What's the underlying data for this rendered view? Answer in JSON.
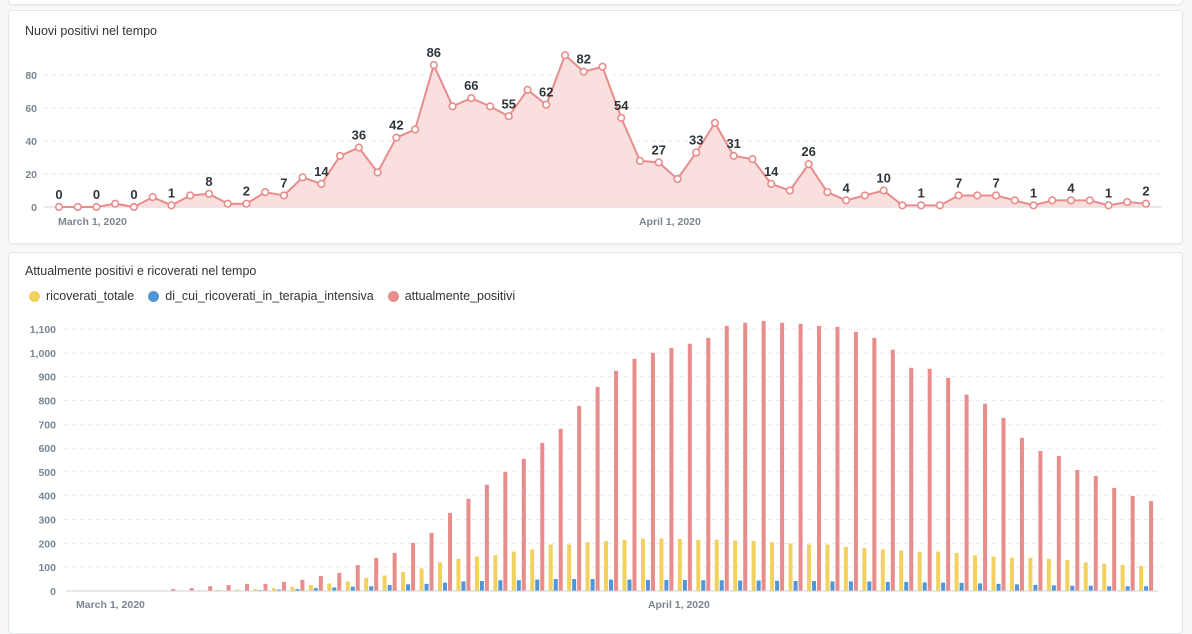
{
  "chart_data": [
    {
      "type": "line",
      "title": "Nuovi positivi nel tempo",
      "xlabel": "",
      "ylabel": "",
      "x_ticks": [
        {
          "index": 0,
          "label": "March 1, 2020"
        },
        {
          "index": 31,
          "label": "April 1, 2020"
        }
      ],
      "y_ticks": [
        0,
        20,
        40,
        60,
        80
      ],
      "ylim": [
        0,
        95
      ],
      "color": "#e88c8c",
      "fill": "#f9d9d9",
      "values": [
        0,
        0,
        0,
        2,
        0,
        6,
        1,
        7,
        8,
        2,
        2,
        9,
        7,
        18,
        14,
        31,
        36,
        21,
        42,
        47,
        86,
        61,
        66,
        61,
        55,
        71,
        62,
        92,
        82,
        85,
        54,
        28,
        27,
        17,
        33,
        51,
        31,
        29,
        14,
        10,
        26,
        9,
        4,
        7,
        10,
        1,
        1,
        1,
        7,
        7,
        7,
        4,
        1,
        4,
        4,
        4,
        1,
        3,
        2
      ],
      "label_every": 2
    },
    {
      "type": "bar",
      "title": "Attualmente positivi e ricoverati nel tempo",
      "xlabel": "",
      "ylabel": "",
      "x_ticks": [
        {
          "index": 0,
          "label": "March 1, 2020"
        },
        {
          "index": 31,
          "label": "April 1, 2020"
        }
      ],
      "y_ticks": [
        0,
        100,
        200,
        300,
        400,
        500,
        600,
        700,
        800,
        900,
        1000,
        1100
      ],
      "y_tick_labels": [
        "0",
        "100",
        "200",
        "300",
        "400",
        "500",
        "600",
        "700",
        "800",
        "900",
        "1,000",
        "1,100"
      ],
      "ylim": [
        0,
        1150
      ],
      "legend_position": "top-left",
      "series": [
        {
          "name": "ricoverati_totale",
          "color": "#f2d15f",
          "values": [
            0,
            0,
            0,
            0,
            0,
            0,
            2,
            3,
            4,
            6,
            8,
            12,
            18,
            25,
            32,
            40,
            55,
            65,
            80,
            95,
            120,
            135,
            145,
            150,
            165,
            175,
            195,
            195,
            205,
            210,
            215,
            220,
            220,
            218,
            215,
            215,
            212,
            210,
            205,
            200,
            195,
            195,
            185,
            180,
            175,
            170,
            165,
            165,
            160,
            150,
            145,
            140,
            140,
            135,
            130,
            120,
            115,
            110,
            105
          ]
        },
        {
          "name": "di_cui_ricoverati_in_terapia_intensiva",
          "color": "#4f96d8",
          "values": [
            0,
            0,
            0,
            0,
            0,
            0,
            0,
            0,
            0,
            2,
            4,
            6,
            8,
            12,
            15,
            18,
            20,
            25,
            28,
            30,
            35,
            40,
            42,
            45,
            45,
            48,
            50,
            50,
            50,
            48,
            48,
            46,
            46,
            46,
            45,
            45,
            44,
            44,
            43,
            42,
            42,
            40,
            40,
            40,
            38,
            38,
            36,
            35,
            34,
            32,
            30,
            28,
            26,
            24,
            22,
            22,
            20,
            20,
            20
          ]
        },
        {
          "name": "attualmente_positivi",
          "color": "#e88c8c",
          "values": [
            0,
            0,
            0,
            0,
            0,
            8,
            12,
            20,
            25,
            30,
            30,
            38,
            47,
            63,
            76,
            109,
            139,
            160,
            202,
            244,
            328,
            387,
            446,
            500,
            555,
            622,
            681,
            777,
            857,
            924,
            975,
            1000,
            1021,
            1038,
            1063,
            1113,
            1126,
            1134,
            1126,
            1122,
            1113,
            1109,
            1088,
            1063,
            1013,
            937,
            933,
            895,
            824,
            786,
            727,
            643,
            588,
            567,
            508,
            483,
            433,
            399,
            378
          ]
        }
      ]
    }
  ]
}
